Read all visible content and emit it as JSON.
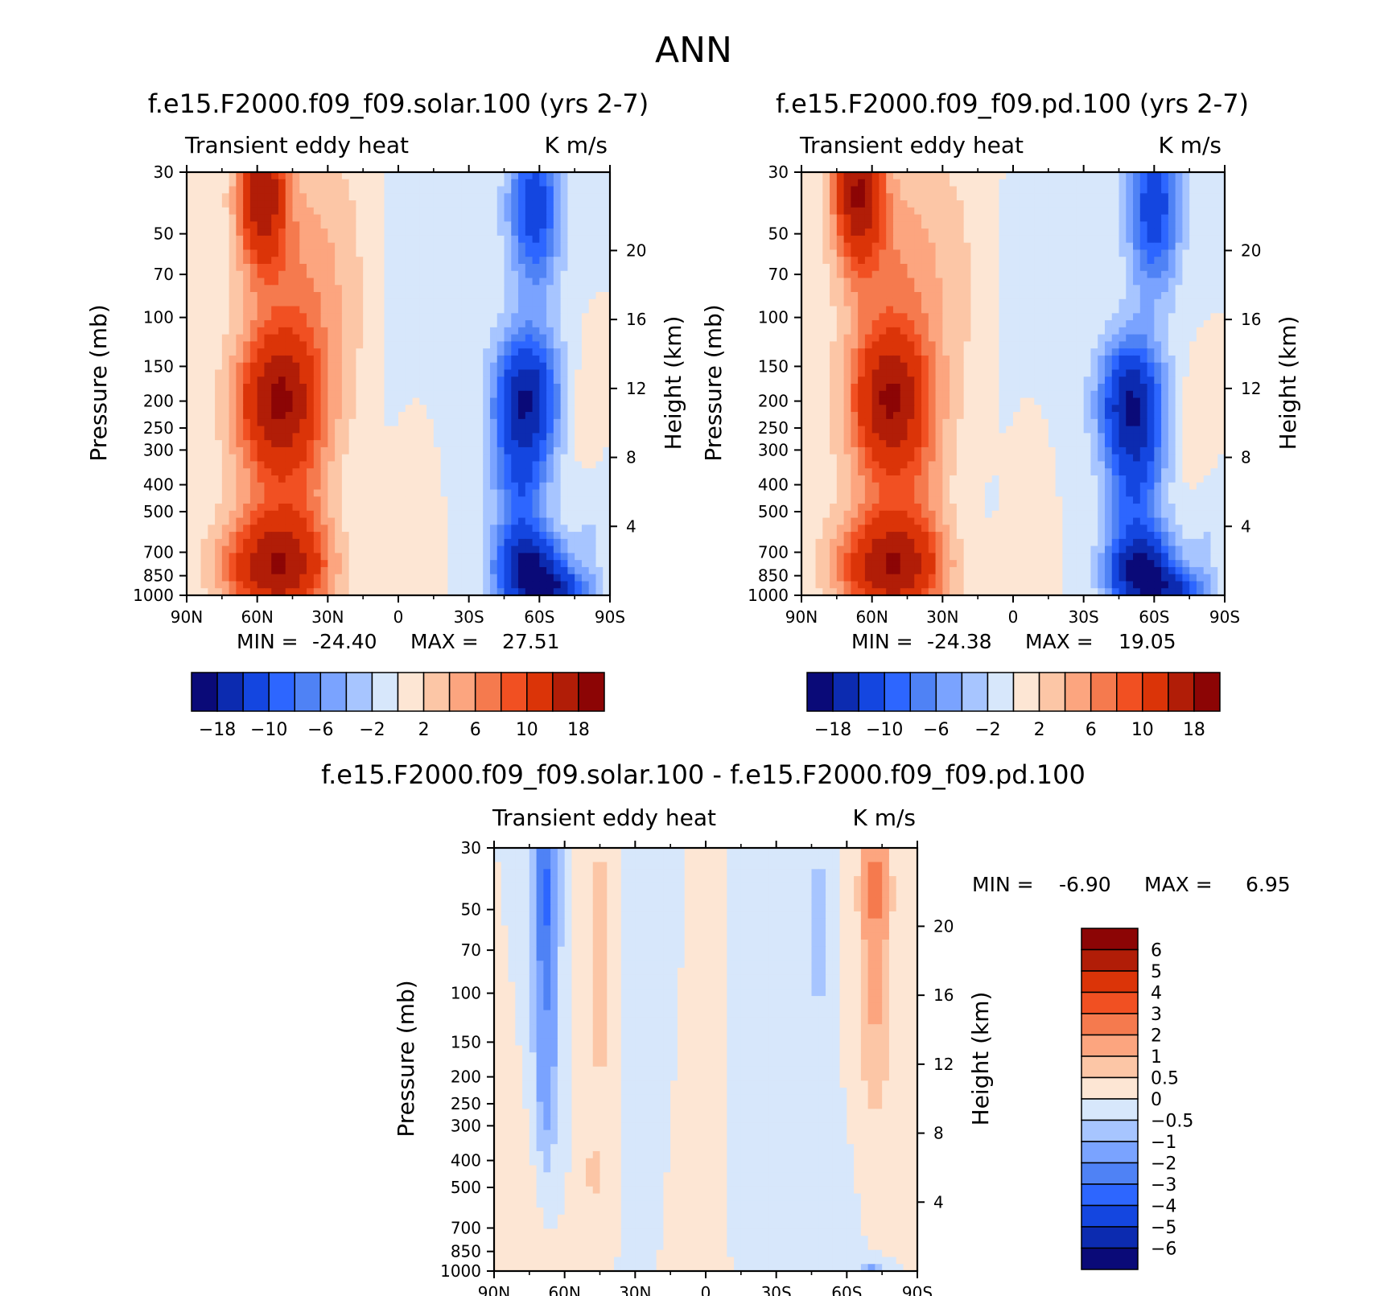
{
  "figure": {
    "title": "ANN"
  },
  "chart_data": [
    {
      "type": "heatmap",
      "title": "f.e15.F2000.f09_f09.solar.100 (yrs 2-7)",
      "left_label": "Transient eddy heat",
      "right_label": "K m/s",
      "xlabel": "",
      "ylabel": "Pressure (mb)",
      "y2label": "Height (km)",
      "x_ticks": [
        "90N",
        "60N",
        "30N",
        "0",
        "30S",
        "60S",
        "90S"
      ],
      "y_ticks": [
        30,
        50,
        70,
        100,
        150,
        200,
        250,
        300,
        400,
        500,
        700,
        850,
        1000
      ],
      "y2_ticks": [
        4,
        8,
        12,
        16,
        20
      ],
      "y_scale": "log",
      "ylim": [
        1000,
        30
      ],
      "xlim": [
        90,
        -90
      ],
      "min_label": "MIN = ",
      "max_label": "MAX = ",
      "min": "-24.40",
      "max": "27.51",
      "colorbar": {
        "orientation": "horizontal",
        "labels": [
          "-18",
          "-10",
          "-6",
          "-2",
          "2",
          "6",
          "10",
          "18"
        ],
        "colors": [
          "#0a0a78",
          "#0c2bb0",
          "#1446e0",
          "#2d66ff",
          "#4f82f5",
          "#7aa3ff",
          "#a7c5ff",
          "#d7e7fb",
          "#fde6d4",
          "#fcc6a6",
          "#fca57f",
          "#f57a4e",
          "#f15022",
          "#db3408",
          "#b11d07",
          "#8c0505"
        ]
      },
      "blobs": [
        {
          "lat": 58,
          "p": 35,
          "v": 16,
          "wlat": 10,
          "wlnp": 0.6
        },
        {
          "lat": 52,
          "p": 195,
          "v": 12,
          "wlat": 16,
          "wlnp": 0.5
        },
        {
          "lat": 52,
          "p": 800,
          "v": 15,
          "wlat": 22,
          "wlnp": 0.4
        },
        {
          "lat": 48,
          "p": 400,
          "v": 6,
          "wlat": 22,
          "wlnp": 0.9
        },
        {
          "lat": 45,
          "p": 100,
          "v": 6,
          "wlat": 22,
          "wlnp": 1.2
        },
        {
          "lat": 22,
          "p": 60,
          "v": 1.5,
          "wlat": 20,
          "wlnp": 1.5
        },
        {
          "lat": -8,
          "p": 400,
          "v": 1.8,
          "wlat": 9,
          "wlnp": 0.9
        },
        {
          "lat": 22,
          "p": 500,
          "v": -1.2,
          "wlat": 12,
          "wlnp": 0.8
        },
        {
          "lat": -8,
          "p": 80,
          "v": -1.5,
          "wlat": 20,
          "wlnp": 1.6
        },
        {
          "lat": -58,
          "p": 40,
          "v": -12,
          "wlat": 11,
          "wlnp": 0.7
        },
        {
          "lat": -55,
          "p": 190,
          "v": -14,
          "wlat": 13,
          "wlnp": 0.5
        },
        {
          "lat": -57,
          "p": 830,
          "v": -17,
          "wlat": 14,
          "wlnp": 0.3
        },
        {
          "lat": -52,
          "p": 400,
          "v": -9,
          "wlat": 12,
          "wlnp": 0.9
        },
        {
          "lat": -70,
          "p": 960,
          "v": -10,
          "wlat": 12,
          "wlnp": 0.15
        },
        {
          "lat": -80,
          "p": 230,
          "v": 2.2,
          "wlat": 6,
          "wlnp": 0.5
        },
        {
          "lat": -82,
          "p": 600,
          "v": -2.0,
          "wlat": 8,
          "wlnp": 0.6
        }
      ]
    },
    {
      "type": "heatmap",
      "title": "f.e15.F2000.f09_f09.pd.100 (yrs 2-7)",
      "left_label": "Transient eddy heat",
      "right_label": "K m/s",
      "xlabel": "",
      "ylabel": "Pressure (mb)",
      "y2label": "Height (km)",
      "x_ticks": [
        "90N",
        "60N",
        "30N",
        "0",
        "30S",
        "60S",
        "90S"
      ],
      "y_ticks": [
        30,
        50,
        70,
        100,
        150,
        200,
        250,
        300,
        400,
        500,
        700,
        850,
        1000
      ],
      "y2_ticks": [
        4,
        8,
        12,
        16,
        20
      ],
      "y_scale": "log",
      "ylim": [
        1000,
        30
      ],
      "xlim": [
        90,
        -90
      ],
      "min_label": "MIN = ",
      "max_label": "MAX = ",
      "min": "-24.38",
      "max": "19.05",
      "colorbar": {
        "orientation": "horizontal",
        "labels": [
          "-18",
          "-10",
          "-6",
          "-2",
          "2",
          "6",
          "10",
          "18"
        ],
        "colors": [
          "#0a0a78",
          "#0c2bb0",
          "#1446e0",
          "#2d66ff",
          "#4f82f5",
          "#7aa3ff",
          "#a7c5ff",
          "#d7e7fb",
          "#fde6d4",
          "#fcc6a6",
          "#fca57f",
          "#f57a4e",
          "#f15022",
          "#db3408",
          "#b11d07",
          "#8c0505"
        ]
      },
      "blobs": [
        {
          "lat": 66,
          "p": 35,
          "v": 17,
          "wlat": 10,
          "wlnp": 0.6
        },
        {
          "lat": 53,
          "p": 195,
          "v": 12,
          "wlat": 15,
          "wlnp": 0.5
        },
        {
          "lat": 52,
          "p": 800,
          "v": 15,
          "wlat": 22,
          "wlnp": 0.4
        },
        {
          "lat": 48,
          "p": 400,
          "v": 6,
          "wlat": 22,
          "wlnp": 0.9
        },
        {
          "lat": 50,
          "p": 90,
          "v": 6,
          "wlat": 22,
          "wlnp": 1.2
        },
        {
          "lat": 20,
          "p": 60,
          "v": 1.5,
          "wlat": 20,
          "wlnp": 1.5
        },
        {
          "lat": -8,
          "p": 400,
          "v": 1.8,
          "wlat": 9,
          "wlnp": 0.9
        },
        {
          "lat": 22,
          "p": 500,
          "v": -1.2,
          "wlat": 12,
          "wlnp": 0.8
        },
        {
          "lat": -8,
          "p": 80,
          "v": -1.5,
          "wlat": 20,
          "wlnp": 1.6
        },
        {
          "lat": -60,
          "p": 40,
          "v": -12,
          "wlat": 11,
          "wlnp": 0.7
        },
        {
          "lat": -50,
          "p": 200,
          "v": -14,
          "wlat": 13,
          "wlnp": 0.5
        },
        {
          "lat": -55,
          "p": 830,
          "v": -17,
          "wlat": 14,
          "wlnp": 0.3
        },
        {
          "lat": -52,
          "p": 400,
          "v": -9,
          "wlat": 12,
          "wlnp": 0.9
        },
        {
          "lat": -70,
          "p": 960,
          "v": -10,
          "wlat": 12,
          "wlnp": 0.15
        },
        {
          "lat": -78,
          "p": 260,
          "v": 2.2,
          "wlat": 7,
          "wlnp": 0.5
        },
        {
          "lat": -82,
          "p": 650,
          "v": -2.0,
          "wlat": 8,
          "wlnp": 0.6
        }
      ]
    },
    {
      "type": "heatmap",
      "title": "f.e15.F2000.f09_f09.solar.100 - f.e15.F2000.f09_f09.pd.100",
      "left_label": "Transient eddy heat",
      "right_label": "K m/s",
      "xlabel": "",
      "ylabel": "Pressure (mb)",
      "y2label": "Height (km)",
      "x_ticks": [
        "90N",
        "60N",
        "30N",
        "0",
        "30S",
        "60S",
        "90S"
      ],
      "y_ticks": [
        30,
        50,
        70,
        100,
        150,
        200,
        250,
        300,
        400,
        500,
        700,
        850,
        1000
      ],
      "y2_ticks": [
        4,
        8,
        12,
        16,
        20
      ],
      "y_scale": "log",
      "ylim": [
        1000,
        30
      ],
      "xlim": [
        90,
        -90
      ],
      "min_label": "MIN = ",
      "max_label": "MAX = ",
      "min": "-6.90",
      "max": "6.95",
      "colorbar": {
        "orientation": "vertical",
        "labels": [
          "6",
          "5",
          "4",
          "3",
          "2",
          "1",
          "0.5",
          "0",
          "-0.5",
          "-1",
          "-2",
          "-3",
          "-4",
          "-5",
          "-6"
        ],
        "colors": [
          "#8c0505",
          "#b11d07",
          "#db3408",
          "#f15022",
          "#f57a4e",
          "#fca57f",
          "#fcc6a6",
          "#fde6d4",
          "#d7e7fb",
          "#a7c5ff",
          "#7aa3ff",
          "#4f82f5",
          "#2d66ff",
          "#1446e0",
          "#0c2bb0",
          "#0a0a78"
        ]
      },
      "blobs": [
        {
          "lat": 68,
          "p": 40,
          "v": -2.8,
          "wlat": 5,
          "wlnp": 0.8
        },
        {
          "lat": 68,
          "p": 150,
          "v": -1.6,
          "wlat": 5,
          "wlnp": 1.1
        },
        {
          "lat": 45,
          "p": 80,
          "v": 0.9,
          "wlat": 5,
          "wlnp": 1.2
        },
        {
          "lat": 48,
          "p": 450,
          "v": 0.7,
          "wlat": 3,
          "wlnp": 0.3
        },
        {
          "lat": 20,
          "p": 120,
          "v": -0.3,
          "wlat": 10,
          "wlnp": 1.4
        },
        {
          "lat": 5,
          "p": 300,
          "v": 0.3,
          "wlat": 12,
          "wlnp": 1.5
        },
        {
          "lat": -20,
          "p": 200,
          "v": -0.3,
          "wlat": 10,
          "wlnp": 1.2
        },
        {
          "lat": -48,
          "p": 60,
          "v": -0.8,
          "wlat": 4,
          "wlnp": 0.9
        },
        {
          "lat": -72,
          "p": 40,
          "v": 2.2,
          "wlat": 6,
          "wlnp": 0.6
        },
        {
          "lat": -72,
          "p": 130,
          "v": 1.0,
          "wlat": 7,
          "wlnp": 0.9
        },
        {
          "lat": -70,
          "p": 980,
          "v": -1.3,
          "wlat": 5,
          "wlnp": 0.06
        },
        {
          "lat": 75,
          "p": 850,
          "v": 0.4,
          "wlat": 10,
          "wlnp": 0.9
        },
        {
          "lat": -40,
          "p": 600,
          "v": -0.3,
          "wlat": 16,
          "wlnp": 0.8
        }
      ]
    }
  ]
}
